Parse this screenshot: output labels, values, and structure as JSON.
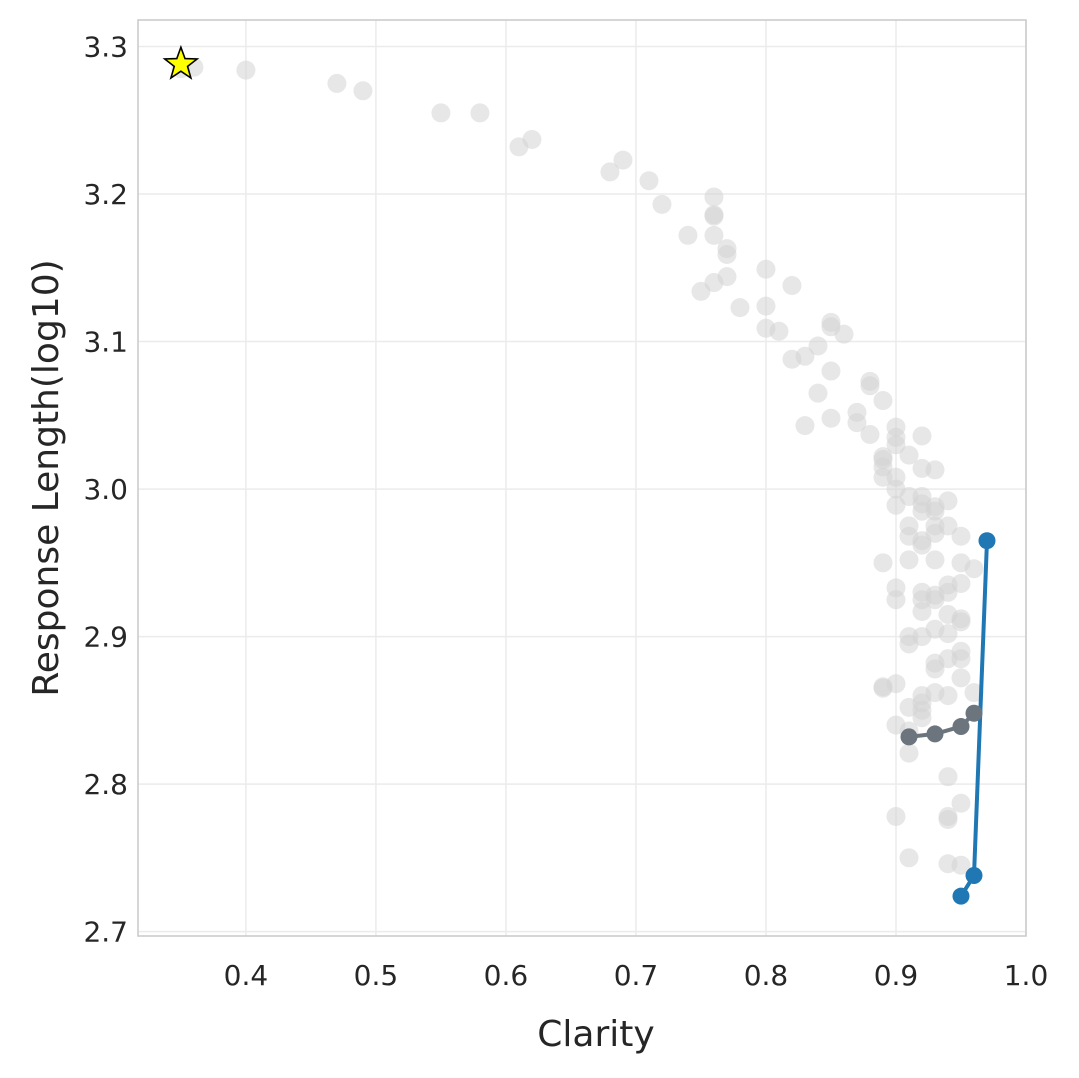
{
  "chart_data": {
    "type": "scatter",
    "xlabel": "Clarity",
    "ylabel": "Response Length(log10)",
    "xlim": [
      0.317,
      1.0
    ],
    "ylim": [
      2.697,
      3.318
    ],
    "xticks": [
      "0.4",
      "0.5",
      "0.6",
      "0.7",
      "0.8",
      "0.9",
      "1.0"
    ],
    "yticks": [
      "2.7",
      "2.8",
      "2.9",
      "3.0",
      "3.1",
      "3.2",
      "3.3"
    ],
    "xtick_values": [
      0.4,
      0.5,
      0.6,
      0.7,
      0.8,
      0.9,
      1.0
    ],
    "ytick_values": [
      2.7,
      2.8,
      2.9,
      3.0,
      3.1,
      3.2,
      3.3
    ],
    "grid": true,
    "colors": {
      "background_points": "#d3d3d3",
      "blue_line": "#1f77b4",
      "gray_line": "#6c757d",
      "star": "#ffff00"
    },
    "series": [
      {
        "style": "background-scatter",
        "points": [
          [
            0.35,
            3.285
          ],
          [
            0.36,
            3.286
          ],
          [
            0.4,
            3.284
          ],
          [
            0.47,
            3.275
          ],
          [
            0.49,
            3.27
          ],
          [
            0.55,
            3.255
          ],
          [
            0.58,
            3.255
          ],
          [
            0.61,
            3.232
          ],
          [
            0.62,
            3.237
          ],
          [
            0.68,
            3.215
          ],
          [
            0.69,
            3.223
          ],
          [
            0.71,
            3.209
          ],
          [
            0.72,
            3.193
          ],
          [
            0.74,
            3.172
          ],
          [
            0.75,
            3.134
          ],
          [
            0.76,
            3.198
          ],
          [
            0.76,
            3.186
          ],
          [
            0.76,
            3.185
          ],
          [
            0.76,
            3.172
          ],
          [
            0.76,
            3.14
          ],
          [
            0.77,
            3.163
          ],
          [
            0.77,
            3.159
          ],
          [
            0.77,
            3.144
          ],
          [
            0.78,
            3.123
          ],
          [
            0.8,
            3.149
          ],
          [
            0.8,
            3.124
          ],
          [
            0.8,
            3.109
          ],
          [
            0.81,
            3.107
          ],
          [
            0.82,
            3.138
          ],
          [
            0.82,
            3.088
          ],
          [
            0.83,
            3.09
          ],
          [
            0.83,
            3.043
          ],
          [
            0.84,
            3.097
          ],
          [
            0.84,
            3.065
          ],
          [
            0.85,
            3.113
          ],
          [
            0.85,
            3.11
          ],
          [
            0.85,
            3.08
          ],
          [
            0.85,
            3.048
          ],
          [
            0.86,
            3.105
          ],
          [
            0.87,
            3.052
          ],
          [
            0.87,
            3.045
          ],
          [
            0.88,
            3.073
          ],
          [
            0.88,
            3.07
          ],
          [
            0.88,
            3.037
          ],
          [
            0.89,
            3.06
          ],
          [
            0.89,
            3.02
          ],
          [
            0.89,
            3.022
          ],
          [
            0.89,
            3.015
          ],
          [
            0.89,
            3.008
          ],
          [
            0.89,
            2.95
          ],
          [
            0.89,
            2.866
          ],
          [
            0.89,
            2.865
          ],
          [
            0.9,
            3.042
          ],
          [
            0.9,
            3.035
          ],
          [
            0.9,
            3.03
          ],
          [
            0.9,
            3.008
          ],
          [
            0.9,
            3.0
          ],
          [
            0.9,
            2.989
          ],
          [
            0.9,
            2.933
          ],
          [
            0.9,
            2.925
          ],
          [
            0.9,
            2.868
          ],
          [
            0.9,
            2.84
          ],
          [
            0.9,
            2.778
          ],
          [
            0.91,
            3.023
          ],
          [
            0.91,
            2.995
          ],
          [
            0.91,
            2.975
          ],
          [
            0.91,
            2.968
          ],
          [
            0.91,
            2.952
          ],
          [
            0.91,
            2.9
          ],
          [
            0.91,
            2.895
          ],
          [
            0.91,
            2.852
          ],
          [
            0.91,
            2.836
          ],
          [
            0.91,
            2.821
          ],
          [
            0.91,
            2.75
          ],
          [
            0.92,
            3.036
          ],
          [
            0.92,
            3.014
          ],
          [
            0.92,
            2.995
          ],
          [
            0.92,
            2.99
          ],
          [
            0.92,
            2.985
          ],
          [
            0.92,
            2.965
          ],
          [
            0.92,
            2.962
          ],
          [
            0.92,
            2.93
          ],
          [
            0.92,
            2.925
          ],
          [
            0.92,
            2.917
          ],
          [
            0.92,
            2.9
          ],
          [
            0.92,
            2.86
          ],
          [
            0.92,
            2.855
          ],
          [
            0.92,
            2.85
          ],
          [
            0.92,
            2.845
          ],
          [
            0.93,
            3.013
          ],
          [
            0.93,
            2.988
          ],
          [
            0.93,
            2.985
          ],
          [
            0.93,
            2.975
          ],
          [
            0.93,
            2.97
          ],
          [
            0.93,
            2.952
          ],
          [
            0.93,
            2.928
          ],
          [
            0.93,
            2.925
          ],
          [
            0.93,
            2.905
          ],
          [
            0.93,
            2.882
          ],
          [
            0.93,
            2.878
          ],
          [
            0.93,
            2.862
          ],
          [
            0.94,
            2.992
          ],
          [
            0.94,
            2.975
          ],
          [
            0.94,
            2.935
          ],
          [
            0.94,
            2.93
          ],
          [
            0.94,
            2.915
          ],
          [
            0.94,
            2.902
          ],
          [
            0.94,
            2.885
          ],
          [
            0.94,
            2.86
          ],
          [
            0.94,
            2.805
          ],
          [
            0.94,
            2.778
          ],
          [
            0.94,
            2.776
          ],
          [
            0.94,
            2.746
          ],
          [
            0.95,
            2.968
          ],
          [
            0.95,
            2.95
          ],
          [
            0.95,
            2.936
          ],
          [
            0.95,
            2.912
          ],
          [
            0.95,
            2.91
          ],
          [
            0.95,
            2.89
          ],
          [
            0.95,
            2.885
          ],
          [
            0.95,
            2.872
          ],
          [
            0.95,
            2.787
          ],
          [
            0.95,
            2.745
          ],
          [
            0.96,
            2.946
          ],
          [
            0.96,
            2.862
          ]
        ]
      },
      {
        "style": "blue-line",
        "points": [
          [
            0.95,
            2.724
          ],
          [
            0.96,
            2.738
          ],
          [
            0.97,
            2.965
          ]
        ]
      },
      {
        "style": "gray-line",
        "points": [
          [
            0.91,
            2.832
          ],
          [
            0.93,
            2.834
          ],
          [
            0.95,
            2.839
          ],
          [
            0.96,
            2.848
          ]
        ]
      },
      {
        "style": "star-marker",
        "points": [
          [
            0.35,
            3.288
          ]
        ]
      }
    ]
  }
}
